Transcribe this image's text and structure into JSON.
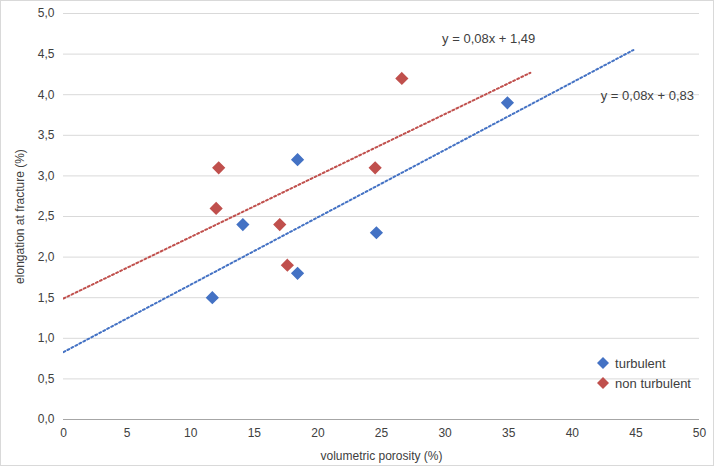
{
  "chart_data": {
    "type": "scatter",
    "xlabel": "volumetric porosity (%)",
    "ylabel": "elongation at fracture (%)",
    "xlim": [
      0,
      50
    ],
    "xticks": [
      0,
      5,
      10,
      15,
      20,
      25,
      30,
      35,
      40,
      45,
      50
    ],
    "ylim": [
      0,
      5
    ],
    "yticks": [
      {
        "value": 0,
        "label": "0,0"
      },
      {
        "value": 0.5,
        "label": "0,5"
      },
      {
        "value": 1,
        "label": "1,0"
      },
      {
        "value": 1.5,
        "label": "1,5"
      },
      {
        "value": 2,
        "label": "2,0"
      },
      {
        "value": 2.5,
        "label": "2,5"
      },
      {
        "value": 3,
        "label": "3,0"
      },
      {
        "value": 3.5,
        "label": "3,5"
      },
      {
        "value": 4,
        "label": "4,0"
      },
      {
        "value": 4.5,
        "label": "4,5"
      },
      {
        "value": 5,
        "label": "5,0"
      }
    ],
    "grid": true,
    "legend": "bottom-right",
    "series": [
      {
        "name": "turbulent",
        "color": "#4472c4",
        "marker": "diamond",
        "x": [
          11.7,
          14.1,
          18.4,
          18.4,
          24.6,
          34.9
        ],
        "values": [
          1.5,
          2.4,
          3.2,
          1.8,
          2.3,
          3.9
        ],
        "trendline": {
          "x": [
            0,
            44.8
          ],
          "values": [
            0.83,
            4.55
          ],
          "label": "y = 0,08x + 0,83",
          "line_style": "dotted"
        }
      },
      {
        "name": "non turbulent",
        "color": "#c0504d",
        "marker": "diamond",
        "x": [
          12.0,
          12.2,
          17.0,
          17.6,
          24.5,
          26.6
        ],
        "values": [
          2.6,
          3.1,
          2.4,
          1.9,
          3.1,
          4.2
        ],
        "trendline": {
          "x": [
            0,
            36.7
          ],
          "values": [
            1.49,
            4.27
          ],
          "label": "y = 0,08x + 1,49",
          "line_style": "dotted"
        }
      }
    ]
  }
}
